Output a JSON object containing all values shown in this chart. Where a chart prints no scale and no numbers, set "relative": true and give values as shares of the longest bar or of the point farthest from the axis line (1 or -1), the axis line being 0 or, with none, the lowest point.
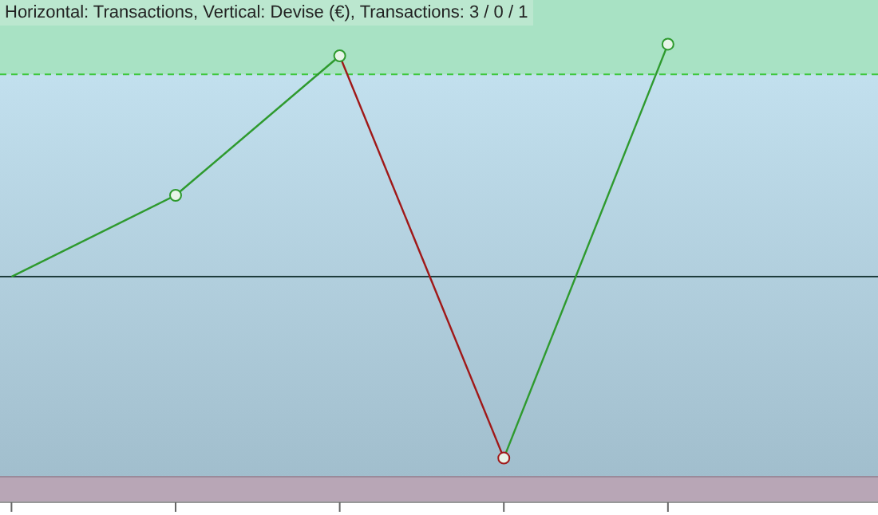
{
  "chart_data": {
    "type": "line",
    "title": "Horizontal: Transactions, Vertical: Devise (€), Transactions: 3 / 0 / 1",
    "relative": true,
    "categories": [
      null,
      null,
      null,
      null,
      null
    ],
    "series": [
      {
        "values": [
          0,
          0.35,
          0.95,
          null,
          null
        ],
        "color": "#2e9a2e"
      },
      {
        "values": [
          null,
          null,
          0.95,
          -0.78,
          null
        ],
        "color": "#a01818"
      },
      {
        "values": [
          null,
          null,
          null,
          -0.78,
          1
        ],
        "color": "#2e9a2e"
      }
    ],
    "marker": "circle",
    "bands": [
      {
        "axis": "y",
        "from": 0.87,
        "to": 1.19,
        "color": "#a8e2c4"
      },
      {
        "axis": "y",
        "from": -0.97,
        "to": -0.86,
        "color": "#b8a6b6"
      }
    ],
    "ref_lines": [
      {
        "axis": "y",
        "value": 0,
        "color": "#1e3c3c"
      },
      {
        "axis": "y",
        "value": 0.87,
        "color": "#3ec83e",
        "line_style": "dashed"
      },
      {
        "axis": "y",
        "value": -0.86,
        "color": "#9a8a9a"
      }
    ]
  }
}
